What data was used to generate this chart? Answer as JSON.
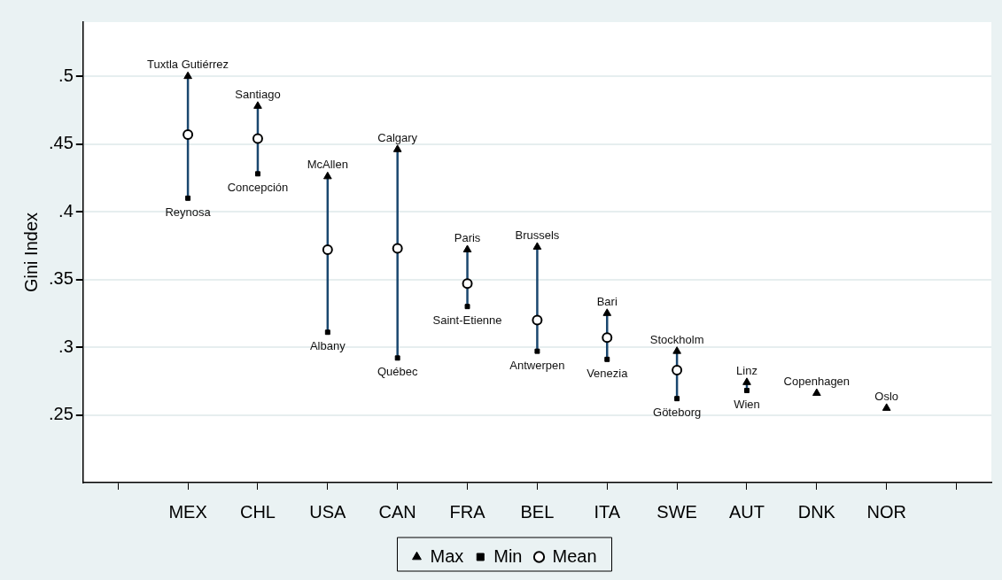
{
  "chart_data": {
    "type": "scatter",
    "ylabel": "Gini Index",
    "categories": [
      null,
      "MEX",
      "CHL",
      "USA",
      "CAN",
      "FRA",
      "BEL",
      "ITA",
      "SWE",
      "AUT",
      "DNK",
      "NOR",
      null
    ],
    "series": [
      {
        "name": "Max",
        "color": "#000000",
        "marker": "triangle",
        "values": [
          null,
          0.5,
          0.478,
          0.426,
          0.446,
          0.372,
          0.374,
          0.325,
          0.297,
          0.274,
          0.266,
          0.255,
          null
        ]
      },
      {
        "name": "Min",
        "color": "#000000",
        "marker": "square",
        "values": [
          null,
          0.41,
          0.428,
          0.311,
          0.292,
          0.33,
          0.297,
          0.291,
          0.262,
          0.268,
          null,
          null,
          null
        ]
      },
      {
        "name": "Mean",
        "color": "#000000",
        "marker": "circle",
        "values": [
          null,
          0.457,
          0.454,
          0.372,
          0.373,
          0.347,
          0.32,
          0.307,
          0.283,
          null,
          null,
          null,
          null
        ]
      }
    ],
    "ylim": [
      0.2,
      0.54
    ],
    "yticks": [
      {
        "value": 0.25,
        "label": ".25"
      },
      {
        "value": 0.3,
        "label": ".3"
      },
      {
        "value": 0.35,
        "label": ".35"
      },
      {
        "value": 0.4,
        "label": ".4"
      },
      {
        "value": 0.45,
        "label": ".45"
      },
      {
        "value": 0.5,
        "label": ".5"
      }
    ],
    "grid": "y",
    "legend": "bottom",
    "annotations": [
      {
        "text": "Tuxtla Gutiérrez",
        "x": "MEX",
        "y": 0.5
      },
      {
        "text": "Reynosa",
        "x": "MEX",
        "y": 0.41
      },
      {
        "text": "Santiago",
        "x": "CHL",
        "y": 0.478
      },
      {
        "text": "Concepción",
        "x": "CHL",
        "y": 0.428
      },
      {
        "text": "McAllen",
        "x": "USA",
        "y": 0.426
      },
      {
        "text": "Albany",
        "x": "USA",
        "y": 0.311
      },
      {
        "text": "Calgary",
        "x": "CAN",
        "y": 0.446
      },
      {
        "text": "Québec",
        "x": "CAN",
        "y": 0.292
      },
      {
        "text": "Paris",
        "x": "FRA",
        "y": 0.372
      },
      {
        "text": "Saint-Etienne",
        "x": "FRA",
        "y": 0.33
      },
      {
        "text": "Brussels",
        "x": "BEL",
        "y": 0.374
      },
      {
        "text": "Antwerpen",
        "x": "BEL",
        "y": 0.297
      },
      {
        "text": "Bari",
        "x": "ITA",
        "y": 0.325
      },
      {
        "text": "Venezia",
        "x": "ITA",
        "y": 0.291
      },
      {
        "text": "Stockholm",
        "x": "SWE",
        "y": 0.297
      },
      {
        "text": "Göteborg",
        "x": "SWE",
        "y": 0.262
      },
      {
        "text": "Linz",
        "x": "AUT",
        "y": 0.274
      },
      {
        "text": "Wien",
        "x": "AUT",
        "y": 0.268
      },
      {
        "text": "Copenhagen",
        "x": "DNK",
        "y": 0.266
      },
      {
        "text": "Oslo",
        "x": "NOR",
        "y": 0.255
      }
    ]
  }
}
